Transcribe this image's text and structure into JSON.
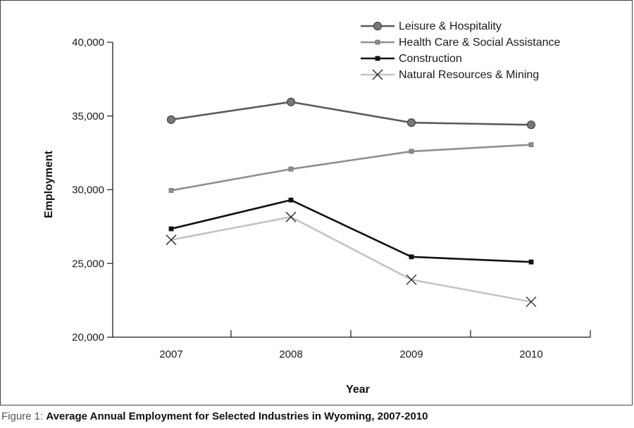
{
  "chart_data": {
    "type": "line",
    "categories": [
      "2007",
      "2008",
      "2009",
      "2010"
    ],
    "ylim": [
      20000,
      40000
    ],
    "yticks": [
      20000,
      25000,
      30000,
      35000,
      40000
    ],
    "ytick_labels": [
      "20,000",
      "25,000",
      "30,000",
      "35,000",
      "40,000"
    ],
    "xlabel": "Year",
    "ylabel": "Employment",
    "legend_position": "top-right",
    "series": [
      {
        "name": "Leisure & Hospitality",
        "values": [
          34750,
          35950,
          34550,
          34400
        ],
        "color": "#5a5a5a",
        "marker": "circle"
      },
      {
        "name": "Health Care & Social Assistance",
        "values": [
          29950,
          31400,
          32600,
          33050
        ],
        "color": "#8f8f8f",
        "marker": "square"
      },
      {
        "name": "Construction",
        "values": [
          27350,
          29300,
          25450,
          25100
        ],
        "color": "#111111",
        "marker": "square"
      },
      {
        "name": "Natural Resources & Mining",
        "values": [
          26600,
          28150,
          23900,
          22400
        ],
        "color": "#c4c4c4",
        "marker": "x"
      }
    ]
  },
  "caption": {
    "prefix": "Figure 1: ",
    "text": "Average Annual Employment for Selected Industries in Wyoming, 2007-2010"
  }
}
